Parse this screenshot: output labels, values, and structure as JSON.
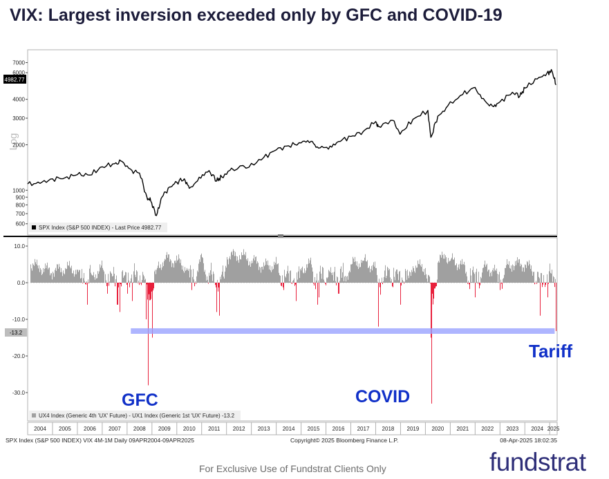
{
  "title": "VIX: Largest inversion exceeded only by GFC and COVID-19",
  "footer": {
    "left": "SPX Index (S&P 500 INDEX) VIX 4M-1M  Daily 09APR2004-09APR2025",
    "center": "Copyright© 2025 Bloomberg Finance L.P.",
    "right": "08-Apr-2025 18:02:35",
    "note": "For Exclusive Use of Fundstrat Clients Only",
    "logo": "fundstrat"
  },
  "annotations": {
    "gfc": "GFC",
    "covid": "COVID",
    "tariff": "Tariff"
  },
  "colors": {
    "price_line": "#000000",
    "positive": "#a0a0a0",
    "negative": "#e8203c",
    "threshold": "#9aa2ff",
    "annotation": "#1030c8"
  },
  "chart_data": [
    {
      "type": "line",
      "axis_label": "Log",
      "scale": "log",
      "y_ticks": [
        600,
        700,
        800,
        900,
        1000,
        2000,
        3000,
        4000,
        6000,
        7000
      ],
      "last_value_label": "4982.77",
      "legend": "SPX Index (S&P 500 INDEX) - Last Price 4982.77",
      "series": [
        {
          "name": "SPX Index (S&P 500 INDEX) - Last Price",
          "x": [
            2004.0,
            2004.5,
            2005.0,
            2005.5,
            2006.0,
            2006.5,
            2007.0,
            2007.5,
            2007.8,
            2008.2,
            2008.5,
            2008.8,
            2008.95,
            2009.18,
            2009.4,
            2009.7,
            2010.0,
            2010.3,
            2010.5,
            2010.9,
            2011.3,
            2011.6,
            2011.8,
            2012.2,
            2012.9,
            2013.5,
            2014.0,
            2014.5,
            2015.0,
            2015.4,
            2015.7,
            2016.1,
            2016.5,
            2017.0,
            2017.5,
            2018.0,
            2018.1,
            2018.7,
            2018.98,
            2019.5,
            2020.1,
            2020.22,
            2020.5,
            2020.9,
            2021.5,
            2022.0,
            2022.4,
            2022.75,
            2023.0,
            2023.5,
            2023.8,
            2024.0,
            2024.5,
            2024.9,
            2025.1,
            2025.25
          ],
          "y": [
            1100,
            1110,
            1190,
            1210,
            1270,
            1260,
            1430,
            1500,
            1550,
            1350,
            1300,
            900,
            850,
            680,
            900,
            1050,
            1130,
            1190,
            1030,
            1220,
            1350,
            1150,
            1230,
            1400,
            1420,
            1650,
            1850,
            1970,
            2060,
            2110,
            1900,
            1870,
            2100,
            2270,
            2450,
            2850,
            2650,
            2900,
            2350,
            2950,
            3380,
            2240,
            3100,
            3620,
            4300,
            4800,
            3900,
            3580,
            3850,
            4450,
            4200,
            4750,
            5450,
            6000,
            6100,
            4982.77
          ]
        }
      ]
    },
    {
      "type": "bar",
      "y_ticks": [
        10.0,
        0.0,
        -10.0,
        -20.0,
        -30.0
      ],
      "last_value_label": "-13.2",
      "threshold": -13.2,
      "legend": "UX4 Index (Generic 4th 'UX' Future) - UX1 Index (Generic 1st 'UX' Future) -13.2",
      "series": [
        {
          "name": "UX4 Index (Generic 4th 'UX' Future) - UX1 Index (Generic 1st 'UX' Future)",
          "x": [
            2004.1,
            2004.5,
            2005.0,
            2005.5,
            2006.0,
            2006.4,
            2006.6,
            2007.0,
            2007.2,
            2007.6,
            2007.7,
            2008.0,
            2008.2,
            2008.5,
            2008.75,
            2008.85,
            2009.0,
            2009.2,
            2009.5,
            2010.0,
            2010.4,
            2010.6,
            2011.0,
            2011.6,
            2011.7,
            2012.0,
            2012.5,
            2013.0,
            2013.5,
            2014.0,
            2014.3,
            2014.8,
            2015.0,
            2015.4,
            2015.65,
            2015.7,
            2016.1,
            2016.5,
            2017.0,
            2017.5,
            2018.0,
            2018.1,
            2018.5,
            2018.98,
            2019.5,
            2020.0,
            2020.2,
            2020.25,
            2020.5,
            2020.8,
            2021.0,
            2021.5,
            2022.0,
            2022.3,
            2022.8,
            2023.0,
            2023.2,
            2023.5,
            2024.0,
            2024.35,
            2024.6,
            2024.9,
            2025.15,
            2025.25
          ],
          "values": [
            5.0,
            4.0,
            3.0,
            4.0,
            3.5,
            -6.0,
            2.0,
            4.0,
            -3.0,
            -6.0,
            -8.0,
            -3.0,
            -5.0,
            2.0,
            -10.0,
            -28.0,
            -15.0,
            4.0,
            6.5,
            6.0,
            4.0,
            -2.0,
            7.0,
            -8.0,
            -9.0,
            7.0,
            7.5,
            6.0,
            4.5,
            5.0,
            -2.0,
            -5.0,
            4.0,
            5.0,
            -6.0,
            -4.0,
            3.5,
            -3.0,
            5.0,
            6.0,
            4.0,
            -12.0,
            4.0,
            -6.0,
            4.5,
            4.0,
            -15.0,
            -33.0,
            5.5,
            7.5,
            6.0,
            5.0,
            -4.0,
            4.0,
            3.5,
            -2.0,
            4.0,
            5.0,
            5.0,
            3.0,
            -9.0,
            -4.0,
            1.5,
            -13.2
          ]
        }
      ]
    },
    {
      "type": "axis",
      "x_ticks": [
        "2004",
        "2005",
        "2006",
        "2007",
        "2008",
        "2009",
        "2010",
        "2011",
        "2012",
        "2013",
        "2014",
        "2015",
        "2016",
        "2017",
        "2018",
        "2019",
        "2020",
        "2021",
        "2022",
        "2023",
        "2024",
        "2025"
      ]
    }
  ]
}
